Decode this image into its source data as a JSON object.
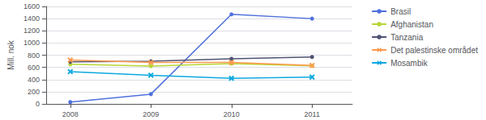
{
  "chart_data": {
    "type": "line",
    "x": [
      2008,
      2009,
      2010,
      2011
    ],
    "series": [
      {
        "name": "Brasil",
        "values": [
          30,
          160,
          1470,
          1400
        ],
        "marker": "circle"
      },
      {
        "name": "Afghanistan",
        "values": [
          650,
          620,
          660,
          625
        ],
        "marker": "circle"
      },
      {
        "name": "Tanzania",
        "values": [
          690,
          700,
          740,
          770
        ],
        "marker": "circle"
      },
      {
        "name": "Det palestinske området",
        "values": [
          720,
          680,
          680,
          630
        ],
        "marker": "x"
      },
      {
        "name": "Mosambik",
        "values": [
          530,
          470,
          420,
          440
        ],
        "marker": "x"
      }
    ],
    "y_label": "Mill. nok",
    "xlim": [
      2007.7,
      2011.5
    ],
    "xticks": [
      2008,
      2009,
      2010,
      2011
    ],
    "ylim": [
      0,
      1600
    ],
    "yticks": [
      0,
      200,
      400,
      600,
      800,
      1000,
      1200,
      1400,
      1600
    ],
    "grid": true,
    "legend": "right"
  }
}
